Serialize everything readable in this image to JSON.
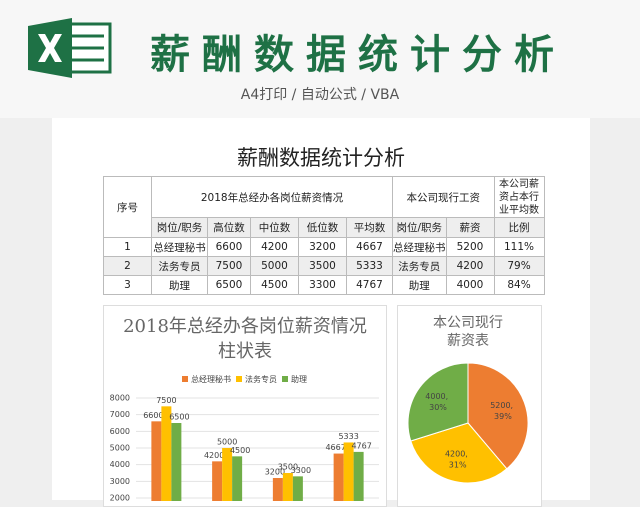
{
  "header": {
    "title": "薪酬数据统计分析",
    "subtitle": "A4打印 / 自动公式 / VBA"
  },
  "sheet": {
    "title": "薪酬数据统计分析"
  },
  "table": {
    "header_rows": [
      [
        "序号",
        "2018年总经办各岗位薪资情况",
        "本公司现行工资",
        "本公司薪资占本行业平均数"
      ],
      [
        "岗位/职务",
        "高位数",
        "中位数",
        "低位数",
        "平均数",
        "岗位/职务",
        "薪资",
        "比例"
      ]
    ],
    "rows": [
      [
        1,
        "总经理秘书",
        6600,
        4200,
        3200,
        4667,
        "总经理秘书",
        5200,
        "111%"
      ],
      [
        2,
        "法务专员",
        7500,
        5000,
        3500,
        5333,
        "法务专员",
        4200,
        "79%"
      ],
      [
        3,
        "助理",
        6500,
        4500,
        3300,
        4767,
        "助理",
        4000,
        "84%"
      ]
    ]
  },
  "chart_data": [
    {
      "type": "bar",
      "title": "2018年总经办各岗位薪资情况柱状表",
      "categories": [
        null,
        null,
        null,
        null
      ],
      "series": [
        {
          "name": "总经理秘书",
          "color": "#ed7d31",
          "values": [
            6600,
            4200,
            3200,
            4667
          ]
        },
        {
          "name": "法务专员",
          "color": "#ffc000",
          "values": [
            7500,
            5000,
            3500,
            5333
          ]
        },
        {
          "name": "助理",
          "color": "#70ad47",
          "values": [
            6500,
            4500,
            3300,
            4767
          ]
        }
      ],
      "ylim": [
        0,
        8000
      ],
      "yticks": [
        2000,
        3000,
        4000,
        5000,
        6000,
        7000,
        8000
      ],
      "grid": true,
      "legend": "top"
    },
    {
      "type": "pie",
      "title": "本公司现行薪资表",
      "categories": [
        "总经理秘书",
        "法务专员",
        "助理"
      ],
      "values": [
        5200,
        4200,
        4000
      ],
      "value_labels": [
        "5200, 39%",
        "4200, 31%",
        "4000, 30%"
      ],
      "colors": [
        "#ed7d31",
        "#ffc000",
        "#70ad47"
      ]
    }
  ]
}
